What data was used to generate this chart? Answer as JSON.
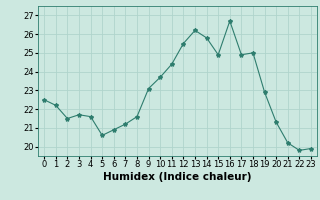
{
  "x": [
    0,
    1,
    2,
    3,
    4,
    5,
    6,
    7,
    8,
    9,
    10,
    11,
    12,
    13,
    14,
    15,
    16,
    17,
    18,
    19,
    20,
    21,
    22,
    23
  ],
  "y": [
    22.5,
    22.2,
    21.5,
    21.7,
    21.6,
    20.6,
    20.9,
    21.2,
    21.6,
    23.1,
    23.7,
    24.4,
    25.5,
    26.2,
    25.8,
    24.9,
    26.7,
    24.9,
    25.0,
    22.9,
    21.3,
    20.2,
    19.8,
    19.9
  ],
  "line_color": "#2e7d6e",
  "marker": "*",
  "marker_size": 3,
  "bg_color": "#cce8e0",
  "grid_color": "#b0d4cc",
  "xlabel": "Humidex (Indice chaleur)",
  "ylim": [
    19.5,
    27.5
  ],
  "xlim": [
    -0.5,
    23.5
  ],
  "yticks": [
    20,
    21,
    22,
    23,
    24,
    25,
    26,
    27
  ],
  "xtick_labels": [
    "0",
    "1",
    "2",
    "3",
    "4",
    "5",
    "6",
    "7",
    "8",
    "9",
    "10",
    "11",
    "12",
    "13",
    "14",
    "15",
    "16",
    "17",
    "18",
    "19",
    "20",
    "21",
    "22",
    "23"
  ],
  "tick_fontsize": 6,
  "xlabel_fontsize": 7.5
}
